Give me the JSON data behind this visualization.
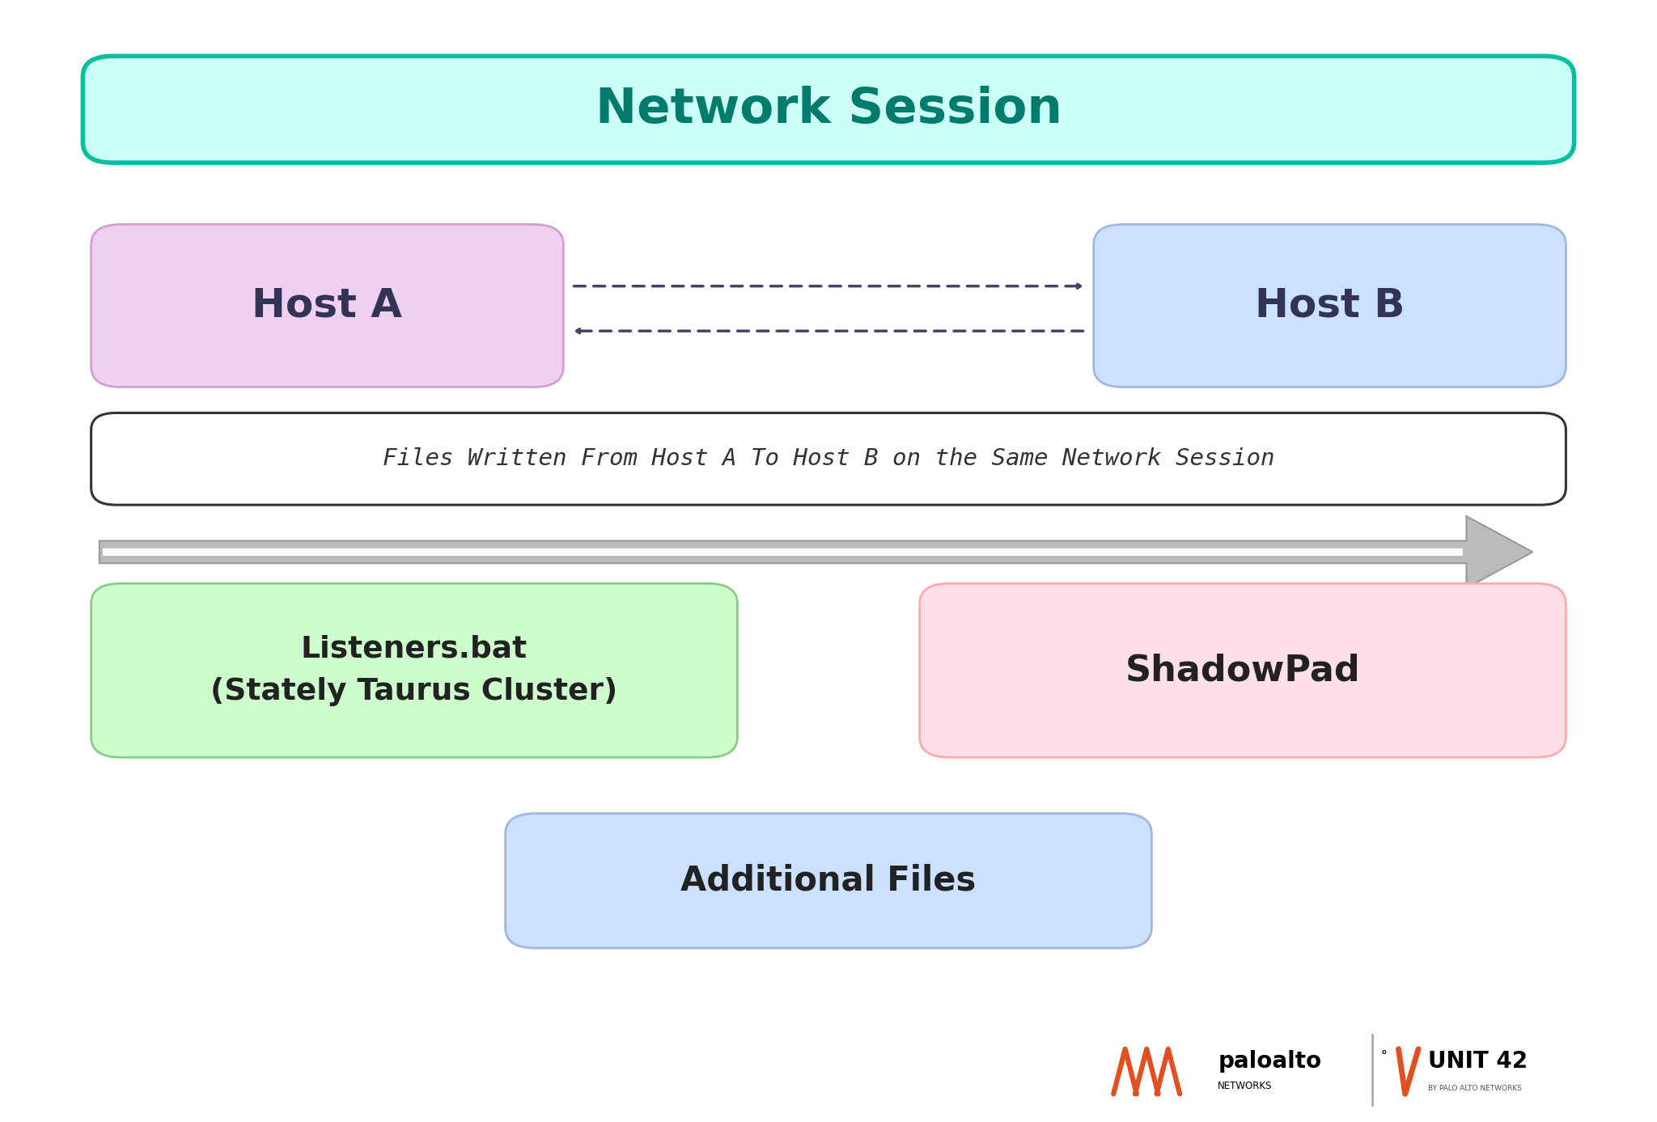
{
  "title": "Network Session",
  "title_color": "#007b6e",
  "title_bg": "#ccfff5",
  "title_border": "#00c0a0",
  "host_a_label": "Host A",
  "host_b_label": "Host B",
  "host_a_bg": "#f0d0f0",
  "host_a_border": "#d0a0d0",
  "host_b_bg": "#cce0ff",
  "host_b_border": "#a0b8e0",
  "host_text_color": "#333355",
  "arrow_color": "#444466",
  "label_box_text": "Files Written From Host A To Host B on the Same Network Session",
  "label_box_bg": "#ffffff",
  "label_box_border": "#333333",
  "label_text_color": "#333333",
  "big_arrow_color": "#bbbbbb",
  "big_arrow_edge": "#999999",
  "listeners_label": "Listeners.bat\n(Stately Taurus Cluster)",
  "listeners_bg": "#ccffcc",
  "listeners_border": "#88cc88",
  "shadowpad_label": "ShadowPad",
  "shadowpad_bg": "#ffe0e8",
  "shadowpad_border": "#ffaaaa",
  "additional_label": "Additional Files",
  "additional_bg": "#cce0ff",
  "additional_border": "#a0b8e0",
  "entity_text_color": "#222222",
  "background_color": "#ffffff",
  "pa_orange": "#e05020",
  "separator_color": "#aaaaaa",
  "unit42_subtext": "BY PALO ALTO NETWORKS"
}
